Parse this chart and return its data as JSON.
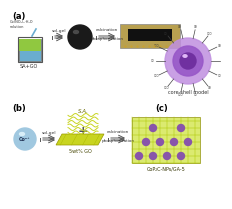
{
  "title_a": "(a)",
  "title_b": "(b)",
  "title_c": "(c)",
  "label_sa_go": "SA+GO",
  "label_sol_gel": "sol-gel",
  "label_calcination": "calcination",
  "label_phosphorization": "phosphorization",
  "label_sa": "S.A.",
  "label_co": "Co²⁺",
  "label_50go": "5wt% GO",
  "label_cop2c": "CoP₂C-NPs/GA-5",
  "label_core_shell": "core-shell model",
  "label_solution": "Co(NO₂)₂·H₂O\nsolution",
  "bg_color": "#ffffff"
}
